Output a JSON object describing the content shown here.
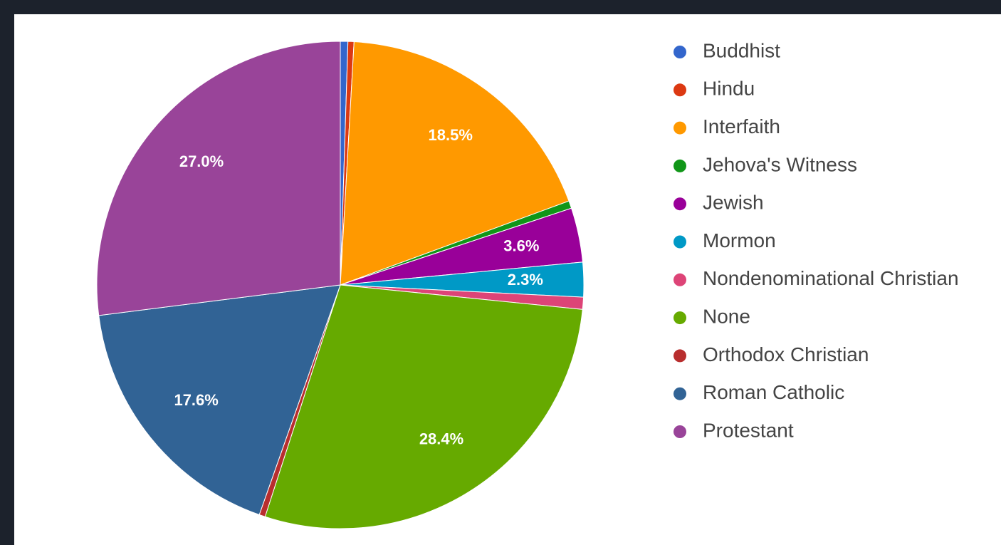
{
  "chart_data": {
    "type": "pie",
    "categories": [
      "Buddhist",
      "Hindu",
      "Interfaith",
      "Jehova's Witness",
      "Jewish",
      "Mormon",
      "Nondenominational Christian",
      "None",
      "Orthodox Christian",
      "Roman Catholic",
      "Protestant"
    ],
    "values": [
      0.5,
      0.4,
      18.5,
      0.5,
      3.6,
      2.3,
      0.8,
      28.4,
      0.4,
      17.6,
      27.0
    ],
    "value_labels": [
      null,
      null,
      "18.5%",
      null,
      "3.6%",
      "2.3%",
      null,
      "28.4%",
      null,
      "17.6%",
      "27.0%"
    ],
    "colors": [
      "#3366cc",
      "#dc3912",
      "#ff9900",
      "#109618",
      "#990099",
      "#0099c6",
      "#dd4477",
      "#66aa00",
      "#b82e2e",
      "#316395",
      "#994499"
    ],
    "legend": "right"
  }
}
